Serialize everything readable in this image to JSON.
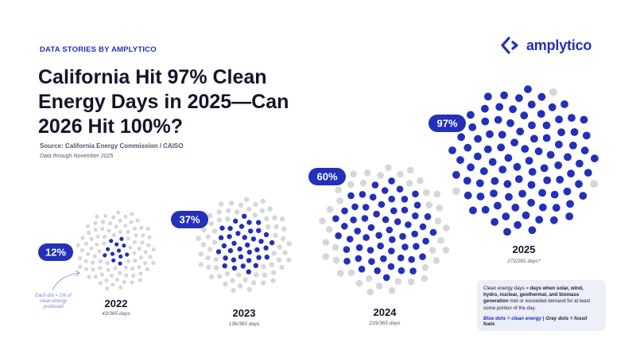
{
  "header": {
    "kicker": "DATA STORIES  BY AMPLYTICO",
    "title": "California Hit 97% Clean Energy Days in 2025—Can 2026 Hit 100%?",
    "source": "Source: California Energy Commission / CAISO",
    "data_through": "Data through November 2025"
  },
  "logo": {
    "text": "amplytico",
    "icon": "chevron-logo-icon"
  },
  "colors": {
    "clean": "#2330b8",
    "fossil": "#d6d7db",
    "badge": "#2330b8",
    "annotation": "#7b84d6"
  },
  "chart_data": {
    "type": "dot-grid",
    "dots_per_year": 100,
    "unit_note": "Each dot = 1% of clean energy produced",
    "years": [
      {
        "year": "2022",
        "percent": 12,
        "label": "12%",
        "days_text": "43/365 days"
      },
      {
        "year": "2023",
        "percent": 37,
        "label": "37%",
        "days_text": "136/365 days"
      },
      {
        "year": "2024",
        "percent": 60,
        "label": "60%",
        "days_text": "219/365 days"
      },
      {
        "year": "2025",
        "percent": 97,
        "label": "97%",
        "days_text": "272/281 days*"
      }
    ]
  },
  "legend": {
    "definition_lead": "Clean energy days = ",
    "definition_bold1": "days when solar, wind, hydro, nuclear, geothermal, and biomass generation",
    "definition_tail": " met or exceeded demand for at least some portion of the day.",
    "key_blue": "Blue dots = clean energy",
    "key_sep": " | ",
    "key_gray": "Gray dots = fossil fuels"
  }
}
